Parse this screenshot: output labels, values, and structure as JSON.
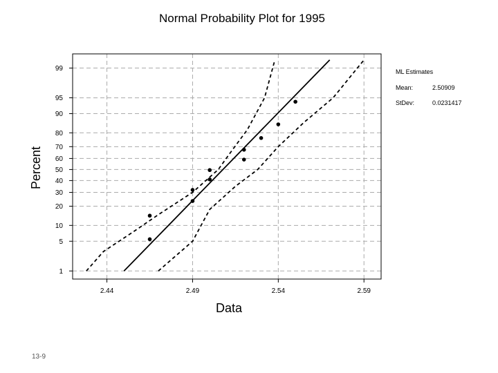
{
  "chart_data": {
    "type": "scatter",
    "title": "Normal Probability Plot for 1995",
    "xlabel": "Data",
    "ylabel": "Percent",
    "y_scale": "normal-probability",
    "xlim": [
      2.42,
      2.6
    ],
    "ylim_percent": [
      0.6,
      99.6
    ],
    "x_ticks": [
      2.44,
      2.49,
      2.54,
      2.59
    ],
    "x_tick_labels": [
      "2.44",
      "2.49",
      "2.54",
      "2.59"
    ],
    "y_ticks": [
      1,
      5,
      10,
      20,
      30,
      40,
      50,
      60,
      70,
      80,
      90,
      95,
      99
    ],
    "y_tick_labels": [
      "1",
      "5",
      "10",
      "20",
      "30",
      "40",
      "50",
      "60",
      "70",
      "80",
      "90",
      "95",
      "99"
    ],
    "grid": true,
    "series": [
      {
        "style": "points",
        "x": [
          2.465,
          2.465,
          2.49,
          2.49,
          2.5,
          2.5,
          2.52,
          2.52,
          2.53,
          2.54,
          2.55
        ],
        "y": [
          5.5,
          14.5,
          23.5,
          32,
          41,
          49.5,
          59,
          67.5,
          76.5,
          85,
          94
        ]
      },
      {
        "style": "solid-line",
        "x": [
          2.45,
          2.57
        ],
        "y": [
          1,
          99.4
        ]
      },
      {
        "style": "dashed-line",
        "x": [
          2.428,
          2.438,
          2.455,
          2.47,
          2.49,
          2.505,
          2.512,
          2.522,
          2.532,
          2.538
        ],
        "y": [
          1,
          3,
          7.5,
          15,
          30,
          50,
          65,
          82,
          95,
          99.4
        ]
      },
      {
        "style": "dashed-line",
        "x": [
          2.47,
          2.49,
          2.5,
          2.515,
          2.528,
          2.54,
          2.555,
          2.572,
          2.59
        ],
        "y": [
          1,
          5,
          18,
          35,
          50,
          70,
          86,
          95,
          99.4
        ]
      }
    ],
    "legend": {
      "heading": "ML Estimates",
      "rows": [
        {
          "label": "Mean:",
          "value": "2.50909"
        },
        {
          "label": "StDev:",
          "value": "0.0231417"
        }
      ]
    }
  },
  "footer": {
    "slide_number": "13-9"
  }
}
